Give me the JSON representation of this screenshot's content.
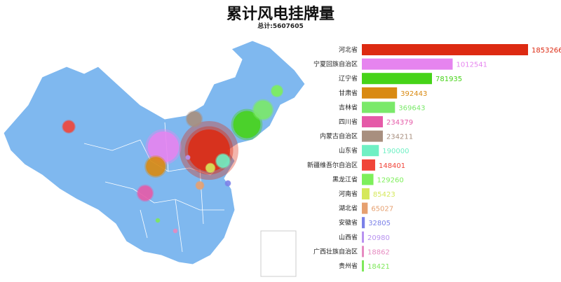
{
  "chart_data": {
    "type": "bar",
    "title": "累计风电挂牌量",
    "subtitle": "总计:5607605",
    "categories": [
      "河北省",
      "宁夏回族自治区",
      "辽宁省",
      "甘肃省",
      "吉林省",
      "四川省",
      "内蒙古自治区",
      "山东省",
      "新疆维吾尔自治区",
      "黑龙江省",
      "河南省",
      "湖北省",
      "安徽省",
      "山西省",
      "广西壮族自治区",
      "贵州省"
    ],
    "values": [
      1853266,
      1012541,
      781935,
      392443,
      369643,
      234379,
      234211,
      190000,
      148401,
      129260,
      85423,
      65027,
      32805,
      20980,
      18862,
      18421
    ],
    "colors": [
      "#dd2a12",
      "#e684ef",
      "#46d318",
      "#d98a12",
      "#7ae96a",
      "#e55aa8",
      "#a88f7f",
      "#6ff0c4",
      "#f0453a",
      "#7def5a",
      "#d5e85a",
      "#e6a070",
      "#7a80e8",
      "#b892f0",
      "#e68ac0",
      "#7ee85a"
    ],
    "map_color": "#7fb8ef",
    "map_type": "china-bubble"
  }
}
